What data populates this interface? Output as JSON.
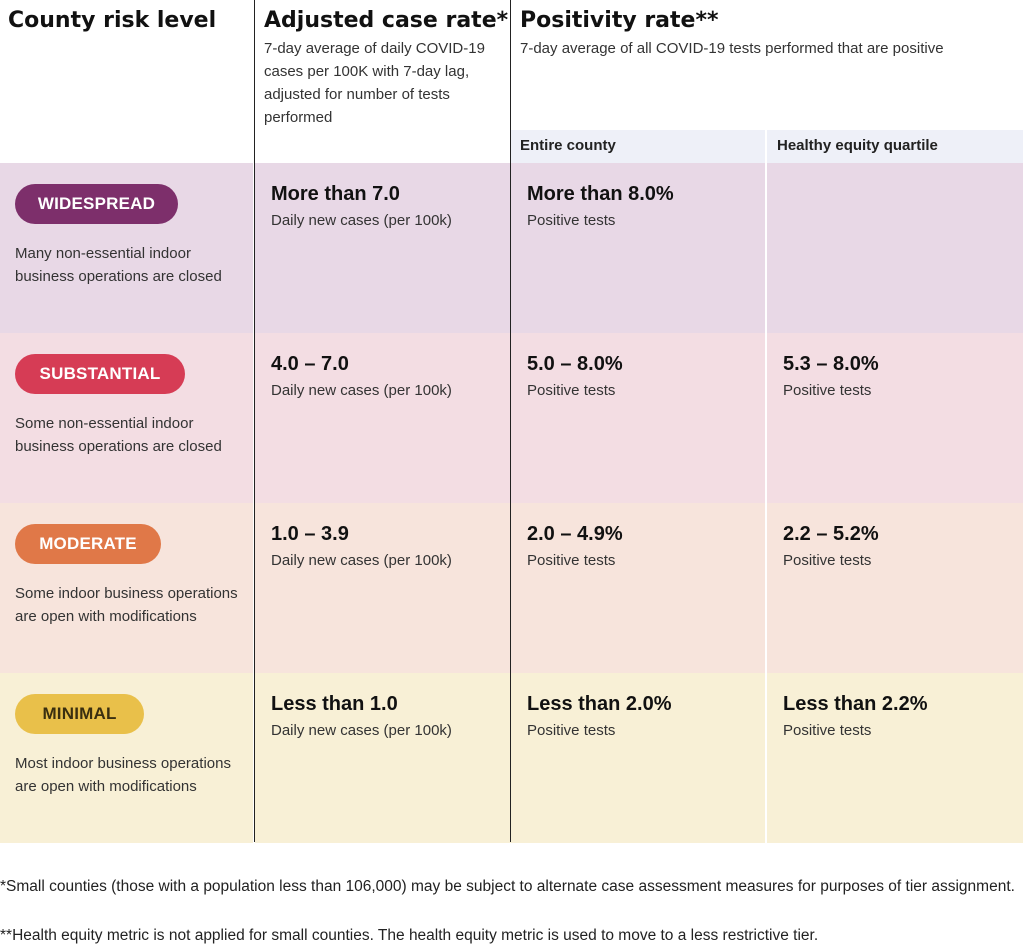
{
  "headers": {
    "risk_level": "County risk level",
    "case_rate_title": "Adjusted case rate*",
    "case_rate_desc": "7-day average of daily COVID-19 cases per 100K with 7-day lag, adjusted for number of tests performed",
    "positivity_title": "Positivity rate**",
    "positivity_desc": "7-day average of all COVID-19 tests performed that are positive",
    "entire_county": "Entire county",
    "equity_quartile": "Healthy equity quartile"
  },
  "rows": [
    {
      "tier": "WIDESPREAD",
      "tier_color": "#7d2f6b",
      "bg_color": "#e8d8e6",
      "description": "Many non-essential indoor business operations are closed",
      "case_rate": "More than 7.0",
      "case_unit": "Daily new cases (per 100k)",
      "county_positivity": "More than 8.0%",
      "county_unit": "Positive tests",
      "equity_positivity": "",
      "equity_unit": ""
    },
    {
      "tier": "SUBSTANTIAL",
      "tier_color": "#d63c55",
      "bg_color": "#f3dde3",
      "description": "Some non-essential indoor business operations are closed",
      "case_rate": "4.0 – 7.0",
      "case_unit": "Daily new cases (per 100k)",
      "county_positivity": "5.0 – 8.0%",
      "county_unit": "Positive tests",
      "equity_positivity": "5.3 – 8.0%",
      "equity_unit": "Positive tests"
    },
    {
      "tier": "MODERATE",
      "tier_color": "#e07848",
      "bg_color": "#f7e4dc",
      "description": "Some indoor business operations are open with modifications",
      "case_rate": "1.0 – 3.9",
      "case_unit": "Daily new cases (per 100k)",
      "county_positivity": "2.0 – 4.9%",
      "county_unit": "Positive tests",
      "equity_positivity": "2.2 – 5.2%",
      "equity_unit": "Positive tests"
    },
    {
      "tier": "MINIMAL",
      "tier_color": "#e9c04a",
      "tier_text_color": "#3a2f10",
      "bg_color": "#f8f0d6",
      "description": "Most indoor business operations are open with modifications",
      "case_rate": "Less than 1.0",
      "case_unit": "Daily new cases (per 100k)",
      "county_positivity": "Less than 2.0%",
      "county_unit": "Positive tests",
      "equity_positivity": "Less than 2.2%",
      "equity_unit": "Positive tests"
    }
  ],
  "footnotes": {
    "small_counties": "*Small counties (those with a population less than 106,000) may be subject to alternate case assessment measures for purposes of tier assignment.",
    "health_equity": "**Health equity metric is not applied for small counties. The health equity metric is used to move to a less restrictive tier."
  }
}
